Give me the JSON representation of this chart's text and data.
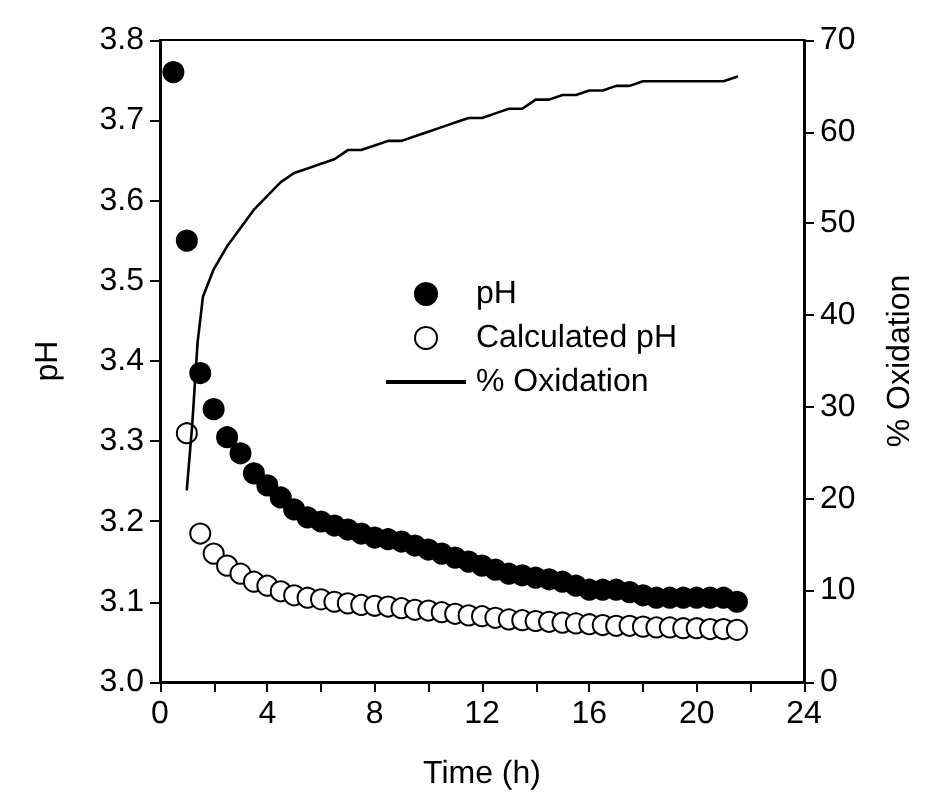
{
  "chart_data": {
    "type": "scatter",
    "xlabel": "Time (h)",
    "ylabel": "pH",
    "y2label": "% Oxidation",
    "xlim": [
      0,
      24
    ],
    "xticks": [
      0,
      {
        "value": 2,
        "label": null
      },
      4,
      {
        "value": 6,
        "label": null
      },
      8,
      {
        "value": 10,
        "label": null
      },
      12,
      {
        "value": 14,
        "label": null
      },
      16,
      {
        "value": 18,
        "label": null
      },
      20,
      {
        "value": 22,
        "label": null
      },
      24
    ],
    "ylim": [
      3.0,
      3.8
    ],
    "yticks": [
      {
        "value": 3,
        "label": "3.0"
      },
      3.1,
      3.2,
      3.3,
      3.4,
      3.5,
      3.6,
      3.7,
      3.8
    ],
    "y2lim": [
      0,
      70
    ],
    "y2ticks": [
      0,
      10,
      20,
      30,
      40,
      50,
      60,
      70
    ],
    "grid": false,
    "legend": "right",
    "marker": "circle",
    "series": [
      {
        "name": "pH",
        "type": "scatter",
        "color": "#000000",
        "x": [
          0.5,
          1,
          1.5,
          2,
          2.5,
          3,
          3.5,
          4,
          4.5,
          5,
          5.5,
          6,
          6.5,
          7,
          7.5,
          8,
          8.5,
          9,
          9.5,
          10,
          10.5,
          11,
          11.5,
          12,
          12.5,
          13,
          13.5,
          14,
          14.5,
          15,
          15.5,
          16,
          16.5,
          17,
          17.5,
          18,
          18.5,
          19,
          19.5,
          20,
          20.5,
          21,
          21.5
        ],
        "values": [
          3.76,
          3.55,
          3.385,
          3.34,
          3.305,
          3.285,
          3.26,
          3.245,
          3.23,
          3.215,
          3.205,
          3.2,
          3.195,
          3.19,
          3.185,
          3.18,
          3.178,
          3.175,
          3.17,
          3.165,
          3.16,
          3.155,
          3.15,
          3.145,
          3.14,
          3.135,
          3.133,
          3.13,
          3.128,
          3.125,
          3.12,
          3.115,
          3.115,
          3.115,
          3.112,
          3.108,
          3.105,
          3.105,
          3.105,
          3.105,
          3.105,
          3.105,
          3.1
        ]
      },
      {
        "name": "Calculated pH",
        "type": "scatter",
        "color": "#ffffff",
        "x": [
          1,
          1.5,
          2,
          2.5,
          3,
          3.5,
          4,
          4.5,
          5,
          5.5,
          6,
          6.5,
          7,
          7.5,
          8,
          8.5,
          9,
          9.5,
          10,
          10.5,
          11,
          11.5,
          12,
          12.5,
          13,
          13.5,
          14,
          14.5,
          15,
          15.5,
          16,
          16.5,
          17,
          17.5,
          18,
          18.5,
          19,
          19.5,
          20,
          20.5,
          21,
          21.5
        ],
        "values": [
          3.31,
          3.185,
          3.16,
          3.145,
          3.135,
          3.125,
          3.12,
          3.113,
          3.108,
          3.105,
          3.103,
          3.1,
          3.098,
          3.096,
          3.095,
          3.094,
          3.092,
          3.09,
          3.089,
          3.087,
          3.085,
          3.083,
          3.082,
          3.08,
          3.078,
          3.077,
          3.076,
          3.075,
          3.074,
          3.073,
          3.072,
          3.071,
          3.07,
          3.07,
          3.069,
          3.068,
          3.068,
          3.067,
          3.067,
          3.066,
          3.066,
          3.065
        ]
      },
      {
        "name": "% Oxidation",
        "type": "line",
        "axis": "y2",
        "marker": "none",
        "color": "#000000",
        "x": [
          1,
          1.2,
          1.4,
          1.6,
          2,
          2.5,
          3,
          3.5,
          4,
          4.5,
          5,
          5.5,
          6,
          6.5,
          7,
          7.5,
          8,
          8.5,
          9,
          9.5,
          10,
          10.5,
          11,
          11.5,
          12,
          12.5,
          13,
          13.5,
          14,
          14.5,
          15,
          15.5,
          16,
          16.5,
          17,
          17.5,
          18,
          19,
          20,
          21,
          21.5
        ],
        "values": [
          21,
          28,
          37,
          42,
          45,
          47.5,
          49.5,
          51.5,
          53,
          54.5,
          55.5,
          56,
          56.5,
          57,
          58,
          58,
          58.5,
          59,
          59,
          59.5,
          60,
          60.5,
          61,
          61.5,
          61.5,
          62,
          62.5,
          62.5,
          63.5,
          63.5,
          64,
          64,
          64.5,
          64.5,
          65,
          65,
          65.5,
          65.5,
          65.5,
          65.5,
          66
        ]
      }
    ]
  }
}
